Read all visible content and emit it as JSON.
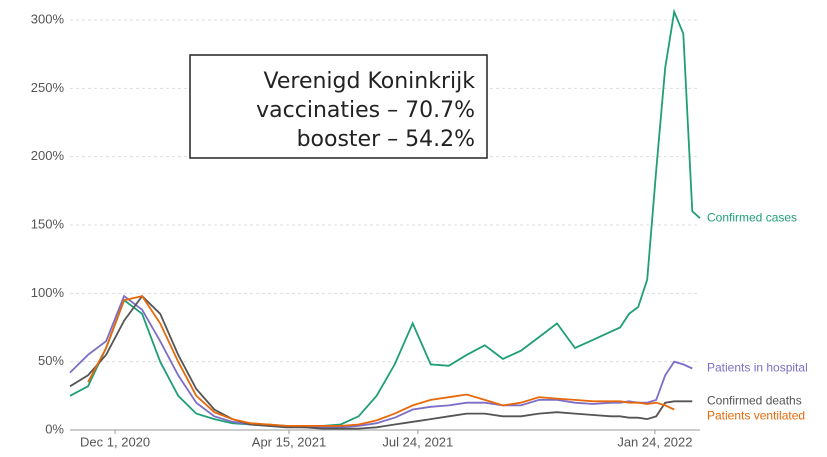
{
  "chart_data": {
    "type": "line",
    "annotation": [
      "Verenigd Koninkrijk",
      "vaccinaties – 70.7%",
      "booster – 54.2%"
    ],
    "x": [
      "2020-10-27",
      "2020-11-10",
      "2020-11-24",
      "2020-12-08",
      "2020-12-22",
      "2021-01-05",
      "2021-01-19",
      "2021-02-02",
      "2021-02-16",
      "2021-03-02",
      "2021-03-16",
      "2021-03-30",
      "2021-04-13",
      "2021-04-27",
      "2021-05-11",
      "2021-05-25",
      "2021-06-08",
      "2021-06-22",
      "2021-07-06",
      "2021-07-20",
      "2021-08-03",
      "2021-08-17",
      "2021-08-31",
      "2021-09-14",
      "2021-09-28",
      "2021-10-12",
      "2021-10-26",
      "2021-11-09",
      "2021-11-23",
      "2021-12-07",
      "2021-12-21",
      "2021-12-28",
      "2022-01-04",
      "2022-01-11",
      "2022-01-18",
      "2022-01-25",
      "2022-02-01",
      "2022-02-08",
      "2022-02-15",
      "2022-02-22",
      "2022-02-28"
    ],
    "series": [
      {
        "name": "Confirmed cases",
        "color": "#1f9e78",
        "values": [
          25,
          32,
          60,
          95,
          85,
          50,
          25,
          12,
          8,
          5,
          4,
          4,
          3,
          3,
          3,
          4,
          10,
          25,
          48,
          78,
          48,
          47,
          55,
          62,
          52,
          58,
          68,
          78,
          60,
          66,
          72,
          75,
          85,
          90,
          110,
          190,
          265,
          306,
          290,
          160,
          155
        ]
      },
      {
        "name": "Patients in hospital",
        "color": "#7d6dc6",
        "values": [
          42,
          55,
          65,
          98,
          88,
          65,
          40,
          20,
          10,
          6,
          4,
          3,
          3,
          2,
          2,
          2,
          3,
          5,
          9,
          15,
          17,
          18,
          20,
          20,
          18,
          18,
          22,
          22,
          20,
          19,
          20,
          20,
          21,
          20,
          20,
          22,
          40,
          50,
          48,
          45,
          null
        ]
      },
      {
        "name": "Confirmed deaths",
        "color": "#555555",
        "values": [
          32,
          40,
          55,
          80,
          98,
          85,
          55,
          30,
          15,
          8,
          4,
          3,
          2,
          2,
          1,
          1,
          1,
          2,
          4,
          6,
          8,
          10,
          12,
          12,
          10,
          10,
          12,
          13,
          12,
          11,
          10,
          10,
          9,
          9,
          8,
          10,
          20,
          21,
          21,
          21,
          null
        ]
      },
      {
        "name": "Patients ventilated",
        "color": "#e8690b",
        "values": [
          null,
          35,
          60,
          95,
          98,
          78,
          50,
          25,
          13,
          8,
          5,
          4,
          3,
          3,
          3,
          3,
          4,
          7,
          12,
          18,
          22,
          24,
          26,
          22,
          18,
          20,
          24,
          23,
          22,
          21,
          21,
          21,
          20,
          20,
          19,
          20,
          18,
          15,
          null,
          null,
          null
        ]
      }
    ],
    "xlim": [
      "2020-10-27",
      "2022-02-28"
    ],
    "xticks": [
      {
        "value": "2020-12-01",
        "label": "Dec 1, 2020"
      },
      {
        "value": "2021-04-15",
        "label": "Apr 15, 2021"
      },
      {
        "value": "2021-07-24",
        "label": "Jul 24, 2021"
      },
      {
        "value": "2022-01-24",
        "label": "Jan 24, 2022"
      }
    ],
    "ylim": [
      0,
      310
    ],
    "yticks": [
      {
        "value": 0,
        "label": "0%"
      },
      {
        "value": 50,
        "label": "50%"
      },
      {
        "value": 100,
        "label": "100%"
      },
      {
        "value": 150,
        "label": "150%"
      },
      {
        "value": 200,
        "label": "200%"
      },
      {
        "value": 250,
        "label": "250%"
      },
      {
        "value": 300,
        "label": "300%"
      }
    ],
    "grid": true
  }
}
